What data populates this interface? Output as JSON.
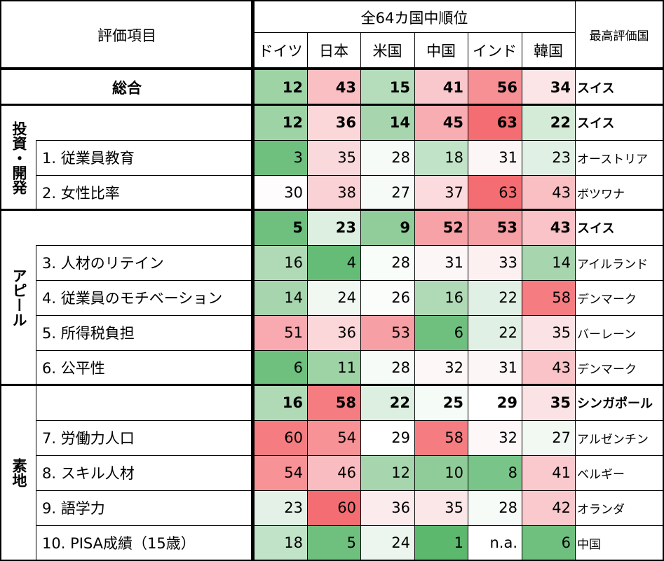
{
  "header": {
    "item_label": "評価項目",
    "group_label": "全64カ国中順位",
    "countries": [
      "ドイツ",
      "日本",
      "米国",
      "中国",
      "インド",
      "韓国"
    ],
    "best_label": "最高評価国"
  },
  "rows": [
    {
      "label": "総合",
      "values": [
        "12",
        "43",
        "15",
        "41",
        "56",
        "34"
      ],
      "best": "スイス",
      "bold": true
    },
    {
      "label": "",
      "values": [
        "12",
        "36",
        "14",
        "45",
        "63",
        "22"
      ],
      "best": "スイス",
      "bold": true
    },
    {
      "label": "1. 従業員教育",
      "values": [
        "3",
        "35",
        "28",
        "18",
        "31",
        "23"
      ],
      "best": "オーストリア",
      "bold": false
    },
    {
      "label": "2. 女性比率",
      "values": [
        "30",
        "38",
        "27",
        "37",
        "63",
        "43"
      ],
      "best": "ボツワナ",
      "bold": false
    },
    {
      "label": "",
      "values": [
        "5",
        "23",
        "9",
        "52",
        "53",
        "43"
      ],
      "best": "スイス",
      "bold": true
    },
    {
      "label": "3. 人材のリテイン",
      "values": [
        "16",
        "4",
        "28",
        "31",
        "33",
        "14"
      ],
      "best": "アイルランド",
      "bold": false
    },
    {
      "label": "4. 従業員のモチベーション",
      "values": [
        "14",
        "24",
        "26",
        "16",
        "22",
        "58"
      ],
      "best": "デンマーク",
      "bold": false
    },
    {
      "label": "5. 所得税負担",
      "values": [
        "51",
        "36",
        "53",
        "6",
        "22",
        "35"
      ],
      "best": "バーレーン",
      "bold": false
    },
    {
      "label": "6. 公平性",
      "values": [
        "6",
        "11",
        "28",
        "32",
        "31",
        "43"
      ],
      "best": "デンマーク",
      "bold": false
    },
    {
      "label": "",
      "values": [
        "16",
        "58",
        "22",
        "25",
        "29",
        "35"
      ],
      "best": "シンガポール",
      "bold": true
    },
    {
      "label": "7. 労働力人口",
      "values": [
        "60",
        "54",
        "29",
        "58",
        "32",
        "27"
      ],
      "best": "アルゼンチン",
      "bold": false
    },
    {
      "label": "8. スキル人材",
      "values": [
        "54",
        "46",
        "12",
        "10",
        "8",
        "41"
      ],
      "best": "ベルギー",
      "bold": false
    },
    {
      "label": "9. 語学力",
      "values": [
        "23",
        "60",
        "36",
        "35",
        "28",
        "42"
      ],
      "best": "オランダ",
      "bold": false
    },
    {
      "label": "10. PISA成績（15歳）",
      "values": [
        "18",
        "5",
        "24",
        "1",
        "n.a.",
        "6"
      ],
      "best": "中国",
      "bold": false
    }
  ],
  "categories": [
    {
      "name": "投資・開発"
    },
    {
      "name": "アピール"
    },
    {
      "name": "素地"
    }
  ],
  "cell_colors": [
    [
      "#9ed3a6",
      "#f9bfc3",
      "#b5dcbb",
      "#f9c8cc",
      "#f69095",
      "#fbe5e7"
    ],
    [
      "#9ed3a6",
      "#fbd7da",
      "#a7d5ae",
      "#f8adb2",
      "#f46d72",
      "#d4ebd8"
    ],
    [
      "#6fc07f",
      "#fad9dc",
      "#f6fbf7",
      "#c1e3c8",
      "#fdf6f7",
      "#e1f0e4"
    ],
    [
      "#fefcfc",
      "#fad1d4",
      "#f7fbf8",
      "#fbdbde",
      "#f46d72",
      "#f9bfc3"
    ],
    [
      "#6fc07f",
      "#dcefe0",
      "#90cd9b",
      "#f7a2a7",
      "#f69fa4",
      "#f9c3c7"
    ],
    [
      "#b0dab6",
      "#64bc76",
      "#f9fdfa",
      "#fdf6f7",
      "#fdf0f1",
      "#a6d5ae"
    ],
    [
      "#a6d5ae",
      "#f1f8f2",
      "#fbfdfb",
      "#b0dab6",
      "#e1f0e4",
      "#f57d82"
    ],
    [
      "#f8aab0",
      "#fbd7da",
      "#f69fa4",
      "#6fc07f",
      "#e1f0e4",
      "#fbe3e5"
    ],
    [
      "#6fc07f",
      "#9ed3a6",
      "#f6fbf7",
      "#fdf7f8",
      "#fdf6f7",
      "#f9c3c7"
    ],
    [
      "#b0dab6",
      "#f57d82",
      "#dcefe0",
      "#f5fbf6",
      "#ffffff",
      "#fbe3e5"
    ],
    [
      "#f57d82",
      "#f79296",
      "#ffffff",
      "#f57d82",
      "#fdf7f8",
      "#f2f9f3"
    ],
    [
      "#f79296",
      "#f9bcc0",
      "#a6d5ae",
      "#8fcc9a",
      "#79c488",
      "#fac9cd"
    ],
    [
      "#e3f1e6",
      "#f46d72",
      "#fcebed",
      "#fbe6e8",
      "#f6fbf7",
      "#fac9cd"
    ],
    [
      "#c1e3c8",
      "#6fc07f",
      "#ecf6ee",
      "#5bb86c",
      "#ffffff",
      "#6fc07f"
    ]
  ]
}
